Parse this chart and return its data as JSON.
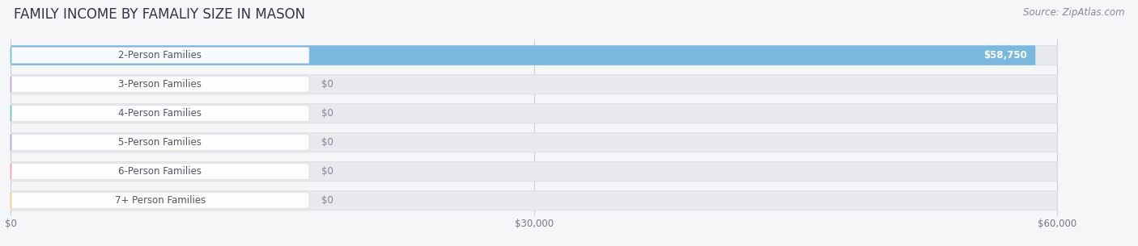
{
  "title": "FAMILY INCOME BY FAMALIY SIZE IN MASON",
  "source": "Source: ZipAtlas.com",
  "categories": [
    "2-Person Families",
    "3-Person Families",
    "4-Person Families",
    "5-Person Families",
    "6-Person Families",
    "7+ Person Families"
  ],
  "values": [
    58750,
    0,
    0,
    0,
    0,
    0
  ],
  "bar_colors": [
    "#7ab8e0",
    "#c3a8d0",
    "#6dc8b4",
    "#a8a8dc",
    "#f4a0b0",
    "#f5cc8a"
  ],
  "xlim": [
    0,
    63000
  ],
  "max_val": 60000,
  "xticks": [
    0,
    30000,
    60000
  ],
  "xticklabels": [
    "$0",
    "$30,000",
    "$60,000"
  ],
  "background_color": "#f5f6f8",
  "bar_bg_color": "#e8e9ec",
  "bar_bg_outline": "#dcdde0",
  "title_fontsize": 12,
  "source_fontsize": 8.5,
  "label_fontsize": 8.5,
  "value_fontsize": 8.5,
  "grid_color": "#ccced6",
  "label_text_color": "#555565",
  "value_text_color_inside": "#ffffff",
  "value_text_color_outside": "#888899"
}
